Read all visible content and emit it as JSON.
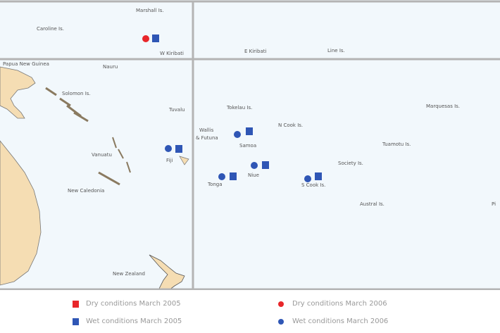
{
  "map": {
    "colors": {
      "sea": "#f2f8fc",
      "land": "#f5ddb3",
      "frame": "#b4b4b4",
      "dry": "#e8262a",
      "wet": "#2f56b5"
    },
    "labels": {
      "marshall": "Marshall Is.",
      "caroline": "Caroline Is.",
      "w_kiribati": "W Kiribati",
      "e_kiribati": "E Kiribati",
      "line": "Line Is.",
      "nauru": "Nauru",
      "png": "Papua New Guinea",
      "solomon": "Solomon Is.",
      "tuvalu": "Tuvalu",
      "vanuatu": "Vanuatu",
      "fiji": "Fiji",
      "new_caledonia": "New Caledonia",
      "wallis": "Wallis",
      "futuna": "& Futuna",
      "tokelau": "Tokelau Is.",
      "samoa": "Samoa",
      "n_cook": "N Cook Is.",
      "tonga": "Tonga",
      "niue": "Niue",
      "s_cook": "S Cook Is.",
      "society": "Society Is.",
      "tuamotu": "Tuamotu Is.",
      "marquesas": "Marquesas Is.",
      "austral": "Austral Is.",
      "new_zealand": "New Zealand",
      "pitcairn": "Pi"
    },
    "markers": [
      {
        "place": "W Kiribati",
        "condition": "dry",
        "year": "2006"
      },
      {
        "place": "W Kiribati",
        "condition": "wet",
        "year": "2005"
      },
      {
        "place": "Fiji",
        "condition": "wet",
        "year": "2006"
      },
      {
        "place": "Fiji",
        "condition": "wet",
        "year": "2005"
      },
      {
        "place": "Samoa",
        "condition": "wet",
        "year": "2006"
      },
      {
        "place": "Samoa",
        "condition": "wet",
        "year": "2005"
      },
      {
        "place": "Tonga",
        "condition": "wet",
        "year": "2006"
      },
      {
        "place": "Tonga",
        "condition": "wet",
        "year": "2005"
      },
      {
        "place": "Niue",
        "condition": "wet",
        "year": "2006"
      },
      {
        "place": "Niue",
        "condition": "wet",
        "year": "2005"
      },
      {
        "place": "S Cook Is.",
        "condition": "wet",
        "year": "2006"
      },
      {
        "place": "S Cook Is.",
        "condition": "wet",
        "year": "2005"
      }
    ]
  },
  "legend": {
    "dry_2005": "Dry conditions March 2005",
    "wet_2005": "Wet conditions March 2005",
    "dry_2006": "Dry conditions March 2006",
    "wet_2006": "Wet conditions March 2006"
  }
}
